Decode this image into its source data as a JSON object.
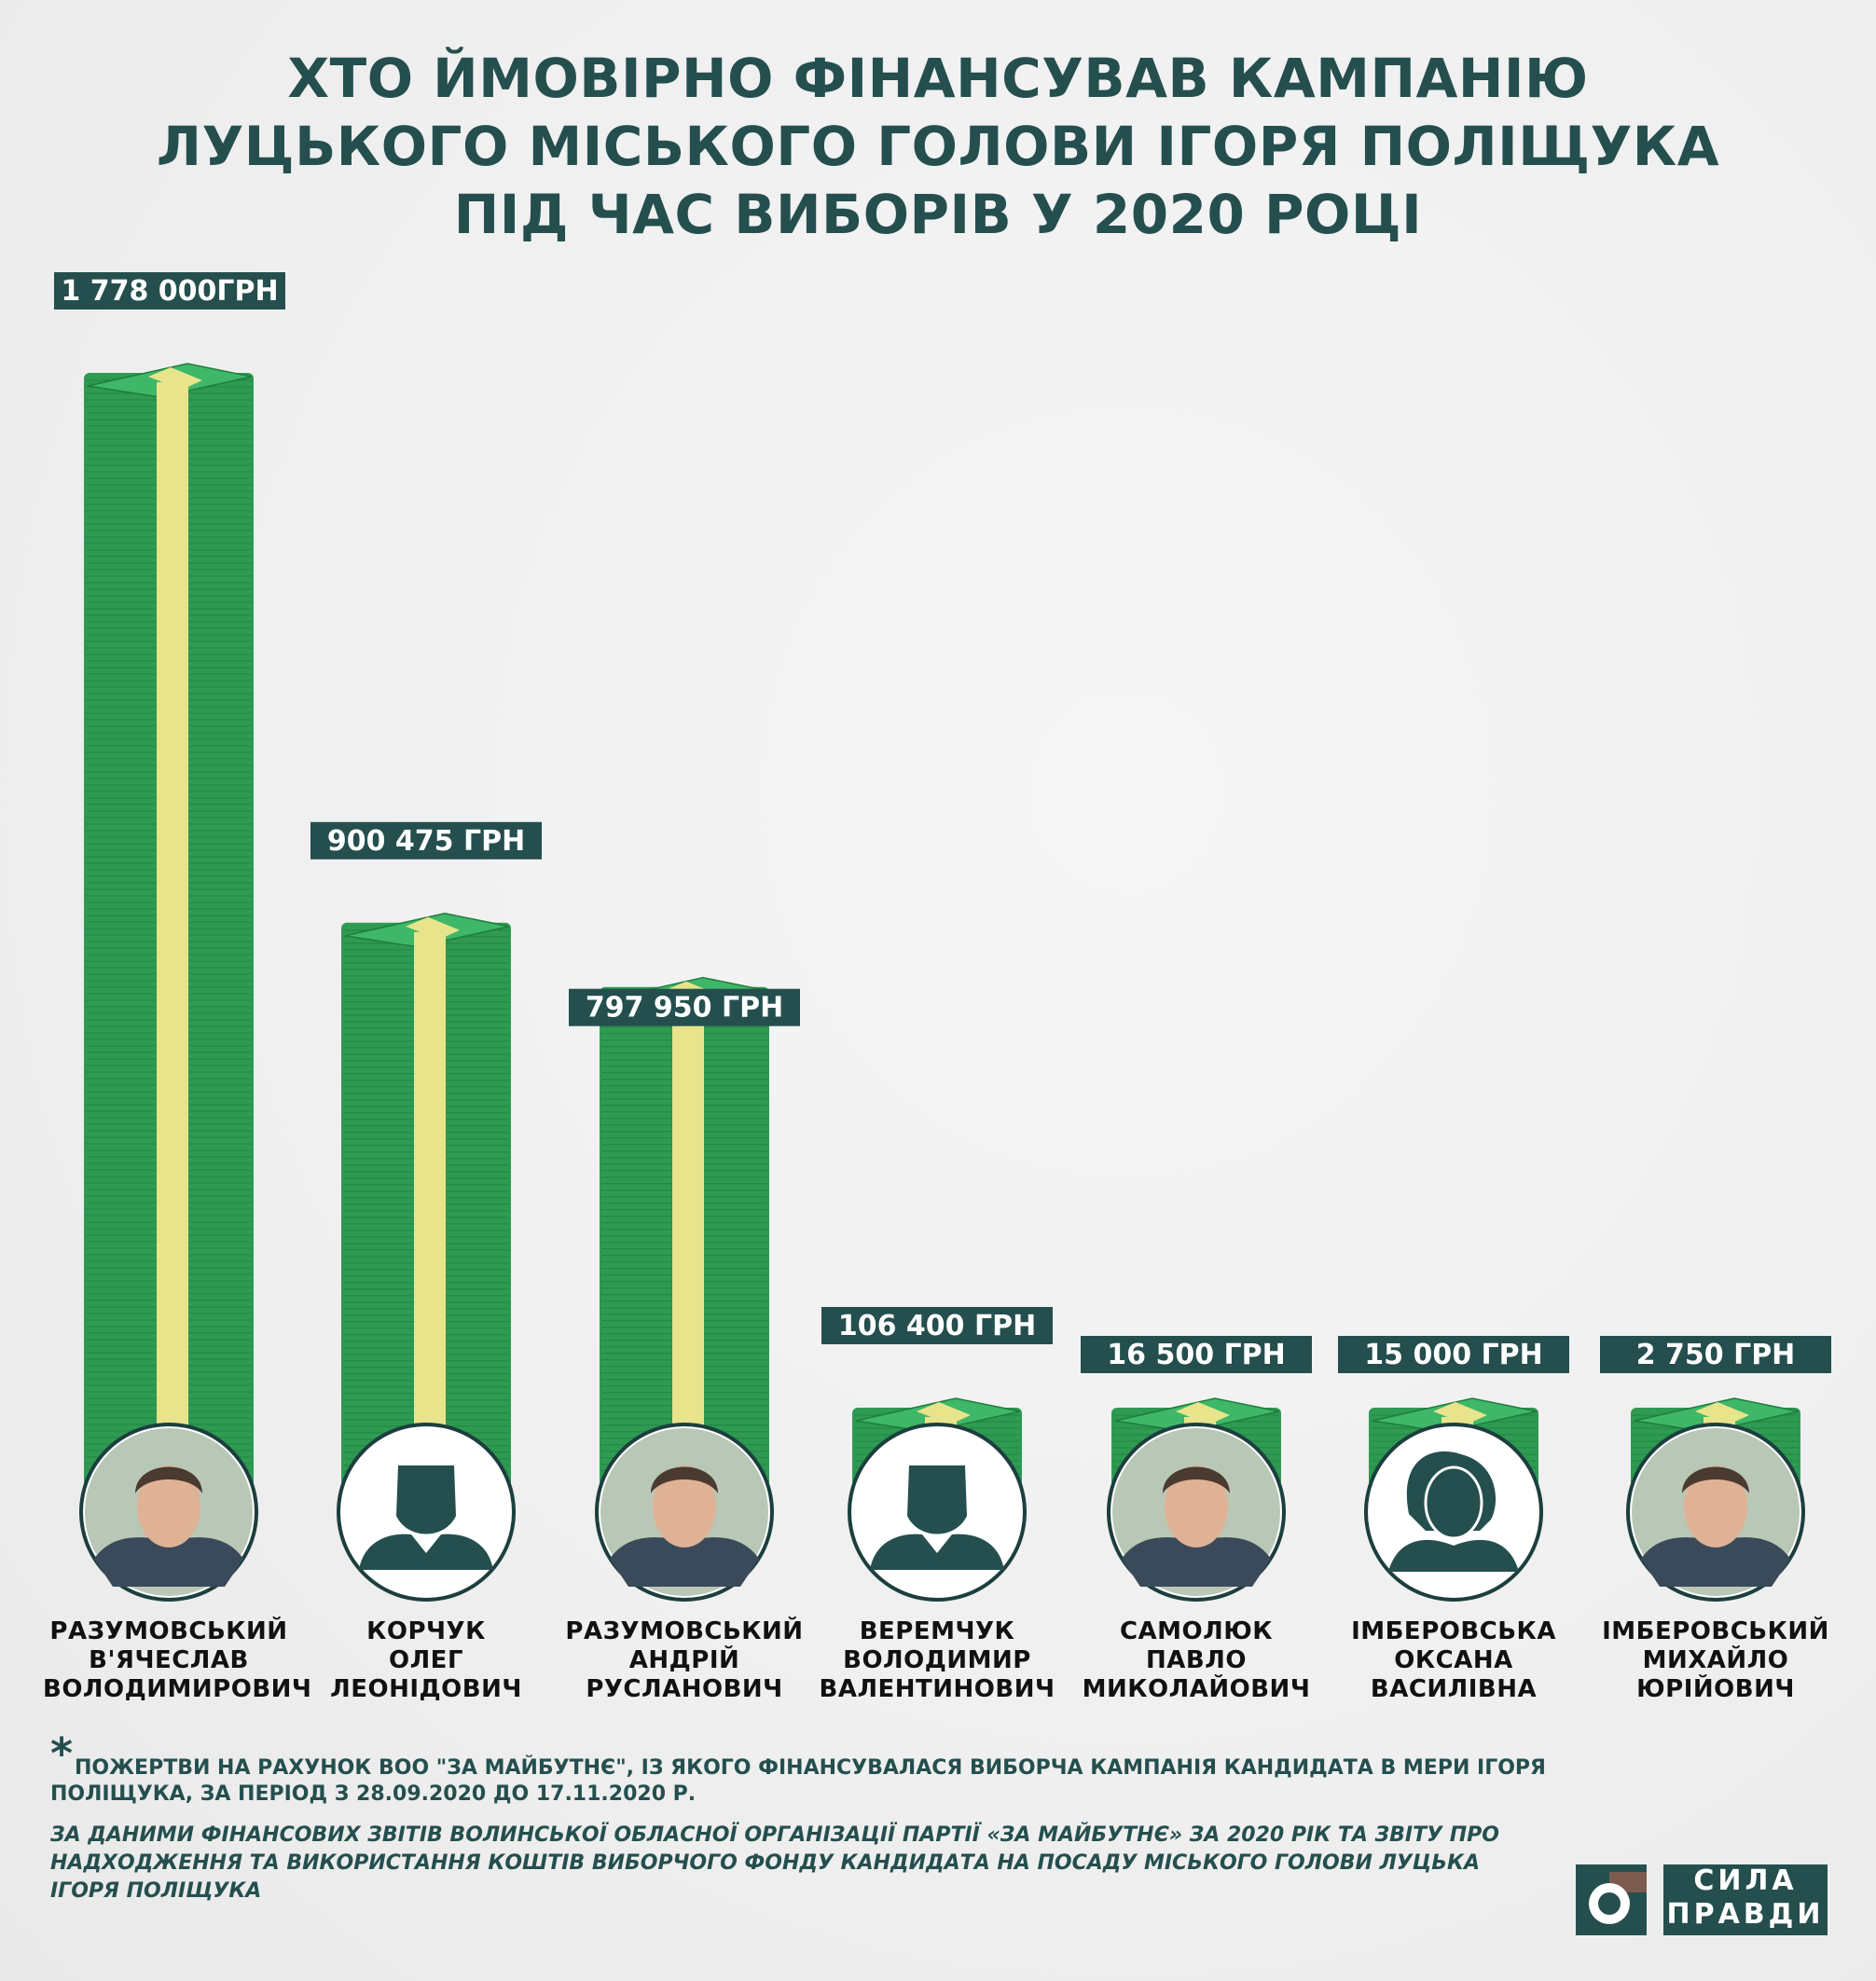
{
  "title": {
    "line1": "ХТО ЙМОВІРНО ФІНАНСУВАВ КАМПАНІЮ",
    "line2": "ЛУЦЬКОГО МІСЬКОГО ГОЛОВИ ІГОРЯ ПОЛІЩУКА",
    "line3": "ПІД ЧАС ВИБОРІВ У 2020 РОЦІ"
  },
  "chart_data": {
    "type": "bar",
    "unit": "ГРН",
    "categories": [
      "РАЗУМОВСЬКИЙ В'ЯЧЕСЛАВ ВОЛОДИМИРОВИЧ",
      "КОРЧУК ОЛЕГ ЛЕОНІДОВИЧ",
      "РАЗУМОВСЬКИЙ АНДРІЙ РУСЛАНОВИЧ",
      "ВЕРЕМЧУК ВОЛОДИМИР ВАЛЕНТИНОВИЧ",
      "САМОЛЮК ПАВЛО МИКОЛАЙОВИЧ",
      "ІМБЕРОВСЬКА ОКСАНА ВАСИЛІВНА",
      "ІМБЕРОВСЬКИЙ МИХАЙЛО ЮРІЙОВИЧ"
    ],
    "values": [
      1778000,
      900475,
      797950,
      106400,
      16500,
      15000,
      2750
    ],
    "value_labels": [
      "1 778 000ГРН",
      "900 475 ГРН",
      "797 950 ГРН",
      "106 400 ГРН",
      "16 500 ГРН",
      "15 000 ГРН",
      "2 750 ГРН"
    ],
    "donors": [
      {
        "lines": [
          "РАЗУМОВСЬКИЙ",
          "В'ЯЧЕСЛАВ",
          "ВОЛОДИМИРОВИЧ"
        ],
        "avatar": "photo",
        "avatar_icon": "man-photo-icon"
      },
      {
        "lines": [
          "КОРЧУК",
          "ОЛЕГ",
          "ЛЕОНІДОВИЧ"
        ],
        "avatar": "silhouette",
        "avatar_icon": "male-silhouette-icon"
      },
      {
        "lines": [
          "РАЗУМОВСЬКИЙ",
          "АНДРІЙ",
          "РУСЛАНОВИЧ"
        ],
        "avatar": "photo",
        "avatar_icon": "man-photo-icon"
      },
      {
        "lines": [
          "ВЕРЕМЧУК",
          "ВОЛОДИМИР",
          "ВАЛЕНТИНОВИЧ"
        ],
        "avatar": "silhouette",
        "avatar_icon": "male-silhouette-icon"
      },
      {
        "lines": [
          "САМОЛЮК",
          "ПАВЛО",
          "МИКОЛАЙОВИЧ"
        ],
        "avatar": "photo",
        "avatar_icon": "man-photo-icon"
      },
      {
        "lines": [
          "ІМБЕРОВСЬКА",
          "ОКСАНА",
          "ВАСИЛІВНА"
        ],
        "avatar": "silhouette",
        "avatar_icon": "female-silhouette-icon"
      },
      {
        "lines": [
          "ІМБЕРОВСЬКИЙ",
          "МИХАЙЛО",
          "ЮРІЙОВИЧ"
        ],
        "avatar": "photo",
        "avatar_icon": "man-photo-icon"
      }
    ]
  },
  "notes": {
    "asterisk": "*",
    "note1_line1": "ПОЖЕРТВИ НА РАХУНОК ВОО \"ЗА МАЙБУТНЄ\", ІЗ ЯКОГО ФІНАНСУВАЛАСЯ ВИБОРЧА КАМПАНІЯ КАНДИДАТА В МЕРИ ІГОРЯ",
    "note1_line2": "ПОЛІЩУКА, ЗА ПЕРІОД З 28.09.2020 ДО 17.11.2020 Р.",
    "note2_line1": " ЗА ДАНИМИ ФІНАНСОВИХ ЗВІТІВ ВОЛИНСЬКОЇ ОБЛАСНОЇ ОРГАНІЗАЦІЇ ПАРТІЇ «ЗА МАЙБУТНЄ» ЗА 2020 РІК ТА ЗВІТУ ПРО",
    "note2_line2": "НАДХОДЖЕННЯ ТА ВИКОРИСТАННЯ КОШТІВ ВИБОРЧОГО ФОНДУ КАНДИДАТА НА ПОСАДУ МІСЬКОГО ГОЛОВИ ЛУЦЬКА",
    "note2_line3": "ІГОРЯ ПОЛІЩУКА"
  },
  "logo": {
    "line1": "СИЛА",
    "line2": "ПРАВДИ",
    "icon": "sila-pravdy-logo-icon"
  },
  "colors": {
    "title": "#244f4e",
    "label_bg": "#244f4e",
    "money_green": "#2e9a52",
    "money_dark": "#1f7d3d",
    "band_yellow": "#e8e48c",
    "avatar_bg": "#ffffff",
    "silhouette": "#244f4e"
  }
}
